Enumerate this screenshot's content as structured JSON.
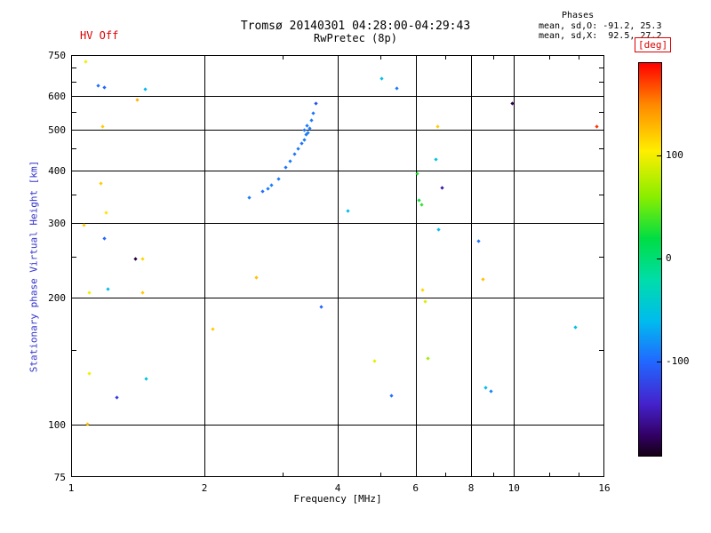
{
  "header": {
    "hv_status": "HV Off",
    "title": "Tromsø 20140301 04:28:00-04:29:43",
    "subtitle": "RwPretec (8p)",
    "phases_label": "Phases",
    "phases_o": "mean, sd,O: -91.2, 25.3",
    "phases_x": "mean, sd,X:  92.5, 27.2"
  },
  "colors": {
    "hv_status": "#dd0000",
    "colorbar_label": "#dd0000",
    "y_axis_title": "#3333cc",
    "axis": "#000000",
    "background": "#ffffff"
  },
  "chart_data": {
    "type": "scatter",
    "title": "Tromsø 20140301 04:28:00-04:29:43",
    "subtitle": "RwPretec (8p)",
    "xlabel": "Frequency [MHz]",
    "ylabel": "Stationary phase Virtual Height [km]",
    "xscale": "log",
    "yscale": "log",
    "xlim": [
      1,
      16
    ],
    "ylim": [
      75,
      750
    ],
    "xticks_major": [
      1,
      2,
      4,
      6,
      8,
      10,
      16
    ],
    "xticks_minor": [
      3,
      5,
      7,
      9,
      12,
      14
    ],
    "yticks_major": [
      75,
      100,
      200,
      300,
      400,
      500,
      600,
      750
    ],
    "yticks_minor": [
      150,
      250,
      350,
      450,
      550,
      650,
      700
    ],
    "grid_x": [
      2,
      4,
      6,
      8,
      10
    ],
    "grid_y": [
      100,
      200,
      300,
      400,
      500,
      600
    ],
    "grid": true,
    "colorbar": {
      "label": "[deg]",
      "min": -190,
      "max": 190,
      "ticks": [
        100,
        0,
        -100
      ]
    },
    "colormap": [
      [
        190,
        "#ff0000"
      ],
      [
        150,
        "#ff8800"
      ],
      [
        105,
        "#ffee00"
      ],
      [
        60,
        "#88ee00"
      ],
      [
        20,
        "#00dd44"
      ],
      [
        -20,
        "#00ddaa"
      ],
      [
        -60,
        "#00bbee"
      ],
      [
        -100,
        "#2266ff"
      ],
      [
        -140,
        "#4422cc"
      ],
      [
        -170,
        "#330066"
      ],
      [
        -190,
        "#150015"
      ]
    ],
    "points_format": [
      "freq_MHz",
      "virtual_height_km",
      "phase_deg"
    ],
    "points": [
      [
        1.08,
        724,
        100
      ],
      [
        1.15,
        635,
        -95
      ],
      [
        1.19,
        627,
        -100
      ],
      [
        1.41,
        586,
        130
      ],
      [
        1.47,
        621,
        -60
      ],
      [
        1.18,
        507,
        120
      ],
      [
        1.17,
        372,
        120
      ],
      [
        1.2,
        317,
        110
      ],
      [
        1.07,
        296,
        120
      ],
      [
        1.19,
        275,
        -100
      ],
      [
        1.4,
        246,
        -180
      ],
      [
        1.45,
        246,
        115
      ],
      [
        1.1,
        205,
        100
      ],
      [
        1.21,
        209,
        -55
      ],
      [
        1.45,
        205,
        120
      ],
      [
        1.1,
        132,
        100
      ],
      [
        1.27,
        116,
        -125
      ],
      [
        1.48,
        128,
        -50
      ],
      [
        1.09,
        100,
        125
      ],
      [
        2.09,
        168,
        120
      ],
      [
        2.62,
        223,
        125
      ],
      [
        2.53,
        345,
        -90
      ],
      [
        2.71,
        357,
        -95
      ],
      [
        2.78,
        361,
        -90
      ],
      [
        2.84,
        368,
        -88
      ],
      [
        2.94,
        382,
        -92
      ],
      [
        3.05,
        407,
        -95
      ],
      [
        3.12,
        421,
        -90
      ],
      [
        3.2,
        436,
        -93
      ],
      [
        3.26,
        449,
        -90
      ],
      [
        3.31,
        462,
        -95
      ],
      [
        3.36,
        473,
        -92
      ],
      [
        3.39,
        485,
        -90
      ],
      [
        3.42,
        490,
        -88
      ],
      [
        3.37,
        497,
        -94
      ],
      [
        3.46,
        502,
        -90
      ],
      [
        3.41,
        509,
        -91
      ],
      [
        3.49,
        524,
        -89
      ],
      [
        3.52,
        547,
        -93
      ],
      [
        3.57,
        575,
        -115
      ],
      [
        3.67,
        190,
        -100
      ],
      [
        4.21,
        320,
        -60
      ],
      [
        4.84,
        141,
        95
      ],
      [
        5.02,
        661,
        -55
      ],
      [
        5.45,
        624,
        -90
      ],
      [
        5.3,
        117,
        -95
      ],
      [
        6.06,
        392,
        30
      ],
      [
        6.1,
        339,
        25
      ],
      [
        6.18,
        332,
        35
      ],
      [
        6.3,
        195,
        90
      ],
      [
        6.21,
        208,
        115
      ],
      [
        6.39,
        143,
        70
      ],
      [
        6.68,
        425,
        -50
      ],
      [
        6.74,
        507,
        120
      ],
      [
        6.87,
        364,
        -150
      ],
      [
        6.77,
        289,
        -55
      ],
      [
        8.31,
        272,
        -95
      ],
      [
        8.51,
        221,
        125
      ],
      [
        8.63,
        122,
        -60
      ],
      [
        8.86,
        120,
        -85
      ],
      [
        9.9,
        575,
        -175
      ],
      [
        13.78,
        170,
        -55
      ],
      [
        15.35,
        507,
        175
      ]
    ]
  }
}
